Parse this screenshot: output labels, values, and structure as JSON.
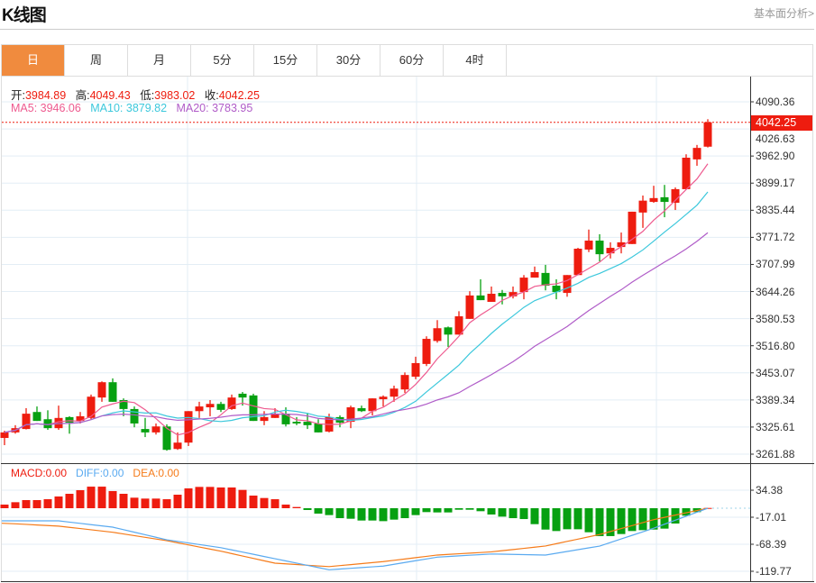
{
  "header": {
    "title": "K线图",
    "link": "基本面分析>"
  },
  "tabs": [
    {
      "label": "日",
      "active": true
    },
    {
      "label": "周"
    },
    {
      "label": "月"
    },
    {
      "label": "5分"
    },
    {
      "label": "15分"
    },
    {
      "label": "30分"
    },
    {
      "label": "60分"
    },
    {
      "label": "4时"
    }
  ],
  "info": {
    "open_label": "开:",
    "open": "3984.89",
    "high_label": "高:",
    "high": "4049.43",
    "low_label": "低:",
    "low": "3983.02",
    "close_label": "收:",
    "close": "4042.25",
    "ma5": "MA5: 3946.06",
    "ma10": "MA10: 3879.82",
    "ma20": "MA20: 3783.95"
  },
  "price_axis": [
    "4090.36",
    "4026.63",
    "3962.90",
    "3899.17",
    "3835.44",
    "3771.72",
    "3707.99",
    "3644.26",
    "3580.53",
    "3516.80",
    "3453.07",
    "3389.34",
    "3325.61",
    "3261.88"
  ],
  "last_price_label": "4042.25",
  "macd_info": {
    "macd": "MACD:0.00",
    "diff": "DIFF:0.00",
    "dea": "DEA:0.00"
  },
  "macd_axis": [
    "34.38",
    "-17.01",
    "-68.39",
    "-119.77"
  ],
  "colors": {
    "up": "#ee1c0f",
    "down": "#07a011",
    "ma5": "#ee5a8f",
    "ma10": "#3cc8dc",
    "ma20": "#b05cc8",
    "diff": "#5aaaf0",
    "dea": "#f57b1a",
    "active_tab": "#f08b3e"
  },
  "chart_data": {
    "type": "candlestick",
    "price_range": [
      3261.88,
      4090.36
    ],
    "candles": [
      [
        3300,
        3313,
        3317,
        3283
      ],
      [
        3313,
        3323,
        3330,
        3310
      ],
      [
        3321,
        3357,
        3370,
        3320
      ],
      [
        3361,
        3340,
        3374,
        3340
      ],
      [
        3344,
        3323,
        3365,
        3319
      ],
      [
        3323,
        3347,
        3376,
        3319
      ],
      [
        3349,
        3336,
        3351,
        3310
      ],
      [
        3340,
        3351,
        3361,
        3334
      ],
      [
        3347,
        3397,
        3402,
        3344
      ],
      [
        3395,
        3431,
        3433,
        3385
      ],
      [
        3431,
        3385,
        3440,
        3385
      ],
      [
        3389,
        3368,
        3393,
        3351
      ],
      [
        3368,
        3334,
        3374,
        3325
      ],
      [
        3321,
        3313,
        3347,
        3302
      ],
      [
        3313,
        3327,
        3334,
        3308
      ],
      [
        3327,
        3272,
        3332,
        3270
      ],
      [
        3274,
        3289,
        3313,
        3272
      ],
      [
        3289,
        3363,
        3363,
        3281
      ],
      [
        3363,
        3374,
        3385,
        3347
      ],
      [
        3372,
        3380,
        3389,
        3351
      ],
      [
        3380,
        3366,
        3385,
        3361
      ],
      [
        3368,
        3395,
        3402,
        3366
      ],
      [
        3404,
        3395,
        3408,
        3376
      ],
      [
        3400,
        3340,
        3404,
        3340
      ],
      [
        3340,
        3349,
        3363,
        3330
      ],
      [
        3347,
        3357,
        3370,
        3347
      ],
      [
        3357,
        3332,
        3372,
        3327
      ],
      [
        3338,
        3334,
        3349,
        3330
      ],
      [
        3338,
        3330,
        3359,
        3321
      ],
      [
        3334,
        3313,
        3344,
        3313
      ],
      [
        3315,
        3349,
        3357,
        3313
      ],
      [
        3349,
        3336,
        3353,
        3325
      ],
      [
        3338,
        3372,
        3376,
        3323
      ],
      [
        3370,
        3363,
        3376,
        3361
      ],
      [
        3363,
        3393,
        3393,
        3353
      ],
      [
        3391,
        3397,
        3400,
        3374
      ],
      [
        3397,
        3416,
        3423,
        3385
      ],
      [
        3414,
        3448,
        3454,
        3406
      ],
      [
        3444,
        3476,
        3491,
        3438
      ],
      [
        3474,
        3533,
        3539,
        3469
      ],
      [
        3528,
        3558,
        3577,
        3524
      ],
      [
        3560,
        3543,
        3562,
        3514
      ],
      [
        3543,
        3586,
        3598,
        3543
      ],
      [
        3580,
        3635,
        3645,
        3580
      ],
      [
        3635,
        3624,
        3673,
        3624
      ],
      [
        3620,
        3639,
        3656,
        3620
      ],
      [
        3641,
        3633,
        3648,
        3614
      ],
      [
        3633,
        3643,
        3656,
        3628
      ],
      [
        3643,
        3677,
        3683,
        3626
      ],
      [
        3677,
        3690,
        3703,
        3677
      ],
      [
        3688,
        3658,
        3707,
        3647
      ],
      [
        3658,
        3643,
        3673,
        3626
      ],
      [
        3641,
        3683,
        3683,
        3632
      ],
      [
        3683,
        3745,
        3747,
        3683
      ],
      [
        3743,
        3764,
        3790,
        3737
      ],
      [
        3764,
        3732,
        3779,
        3715
      ],
      [
        3734,
        3747,
        3760,
        3722
      ],
      [
        3749,
        3760,
        3783,
        3734
      ],
      [
        3756,
        3832,
        3832,
        3756
      ],
      [
        3830,
        3858,
        3870,
        3794
      ],
      [
        3855,
        3864,
        3893,
        3853
      ],
      [
        3866,
        3855,
        3895,
        3819
      ],
      [
        3853,
        3885,
        3889,
        3836
      ],
      [
        3885,
        3959,
        3967,
        3885
      ],
      [
        3955,
        3982,
        3989,
        3940
      ],
      [
        3984.89,
        4042.25,
        4049.43,
        3983.02
      ]
    ],
    "candle_fields": [
      "open",
      "close",
      "high",
      "low"
    ],
    "ma_periods": [
      5,
      10,
      20
    ],
    "macd_range": [
      -119.77,
      34.38
    ],
    "macd_hist": [
      6.9,
      11.4,
      15.4,
      15.4,
      17.1,
      22.3,
      27.4,
      34.3,
      41,
      41,
      32.6,
      27.4,
      20,
      18.3,
      18.3,
      17.1,
      25.7,
      37.7,
      40.5,
      40.5,
      39.4,
      39.4,
      34.8,
      24,
      19.4,
      17.1,
      6.9,
      2.3,
      -3.4,
      -10.3,
      -13.1,
      -18.9,
      -20,
      -23.4,
      -23.4,
      -24.6,
      -21.7,
      -18.9,
      -13.1,
      -7.4,
      -8,
      -8,
      -2.9,
      -2.9,
      -5.7,
      -12,
      -16,
      -18.9,
      -20.6,
      -30.3,
      -40.6,
      -43.4,
      -40,
      -40,
      -45.7,
      -53,
      -53,
      -49.1,
      -43.4,
      -41.7,
      -40.6,
      -38.8,
      -29.1,
      -14.3,
      -7.4,
      0.5
    ],
    "diff_samples": {
      "index": [
        0,
        5,
        10,
        15,
        20,
        25,
        30,
        35,
        40,
        45,
        50,
        55,
        60,
        65
      ],
      "values": [
        -24,
        -24,
        -36,
        -60,
        -75,
        -96,
        -117,
        -110,
        -93,
        -87,
        -89,
        -72,
        -38,
        0
      ]
    },
    "dea_samples": {
      "index": [
        0,
        5,
        10,
        15,
        20,
        25,
        30,
        35,
        40,
        45,
        50,
        55,
        60,
        65
      ],
      "values": [
        -28.6,
        -34,
        -45.7,
        -61.7,
        -81.7,
        -104.5,
        -111,
        -101.5,
        -89,
        -83,
        -71.8,
        -50,
        -21.7,
        0
      ]
    }
  }
}
